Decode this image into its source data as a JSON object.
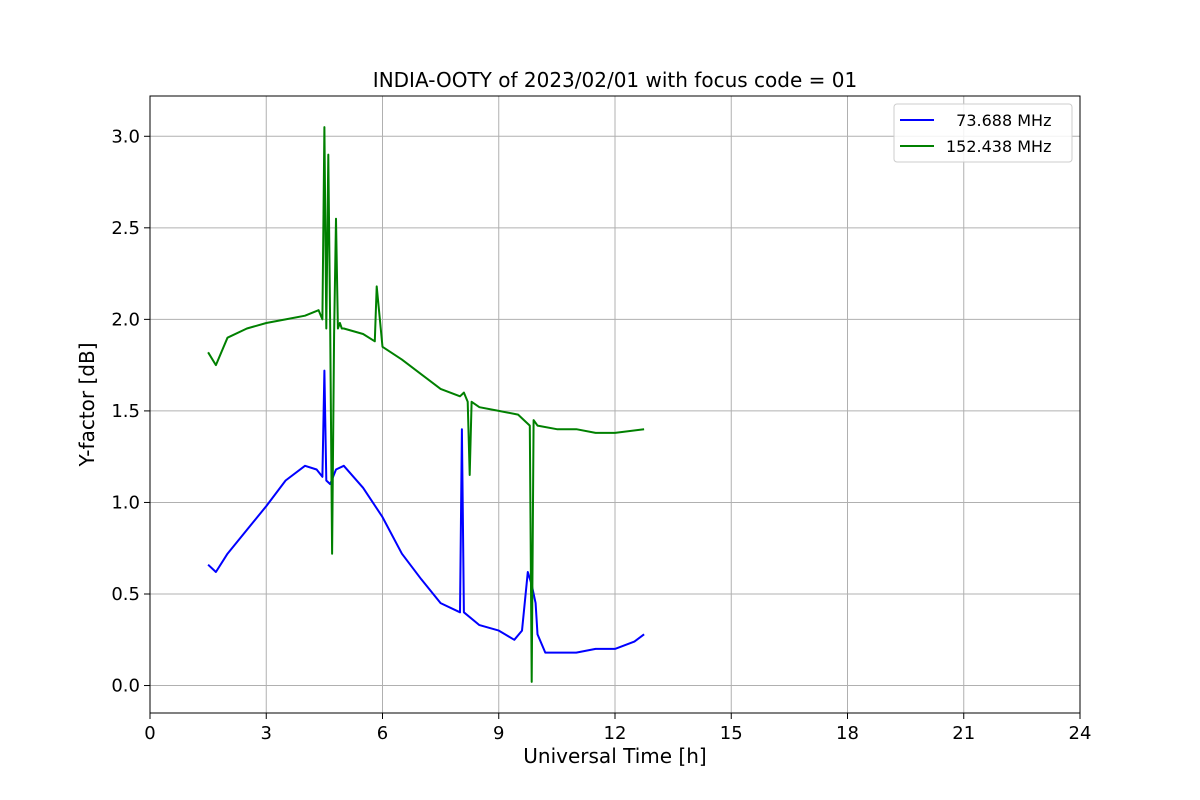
{
  "chart_data": {
    "type": "line",
    "title": "INDIA-OOTY of 2023/02/01 with focus code = 01",
    "xlabel": "Universal Time [h]",
    "ylabel": "Y-factor [dB]",
    "xlim": [
      0,
      24
    ],
    "ylim": [
      -0.15,
      3.22
    ],
    "x_ticks": [
      0,
      3,
      6,
      9,
      12,
      15,
      18,
      21,
      24
    ],
    "x_tick_labels": [
      "0",
      "3",
      "6",
      "9",
      "12",
      "15",
      "18",
      "21",
      "24"
    ],
    "y_ticks": [
      0.0,
      0.5,
      1.0,
      1.5,
      2.0,
      2.5,
      3.0
    ],
    "y_tick_labels": [
      "0.0",
      "0.5",
      "1.0",
      "1.5",
      "2.0",
      "2.5",
      "3.0"
    ],
    "grid": true,
    "legend_position": "top-right",
    "series": [
      {
        "name": "  73.688 MHz",
        "color": "#0000ff",
        "x": [
          1.5,
          1.7,
          2.0,
          2.5,
          3.0,
          3.5,
          4.0,
          4.3,
          4.45,
          4.5,
          4.55,
          4.65,
          4.8,
          5.0,
          5.5,
          6.0,
          6.5,
          7.0,
          7.5,
          8.0,
          8.05,
          8.1,
          8.5,
          9.0,
          9.4,
          9.6,
          9.75,
          9.85,
          9.95,
          10.0,
          10.2,
          10.5,
          11.0,
          11.5,
          12.0,
          12.5,
          12.75
        ],
        "y": [
          0.66,
          0.62,
          0.72,
          0.85,
          0.98,
          1.12,
          1.2,
          1.18,
          1.14,
          1.72,
          1.12,
          1.1,
          1.18,
          1.2,
          1.08,
          0.92,
          0.72,
          0.58,
          0.45,
          0.4,
          1.4,
          0.4,
          0.33,
          0.3,
          0.25,
          0.3,
          0.62,
          0.55,
          0.45,
          0.28,
          0.18,
          0.18,
          0.18,
          0.2,
          0.2,
          0.24,
          0.28
        ]
      },
      {
        "name": "152.438 MHz",
        "color": "#008000",
        "x": [
          1.5,
          1.7,
          2.0,
          2.5,
          3.0,
          3.5,
          4.0,
          4.35,
          4.45,
          4.5,
          4.55,
          4.6,
          4.65,
          4.7,
          4.75,
          4.8,
          4.85,
          4.9,
          4.95,
          5.0,
          5.5,
          5.8,
          5.85,
          6.0,
          6.5,
          7.0,
          7.5,
          8.0,
          8.1,
          8.2,
          8.25,
          8.3,
          8.5,
          9.0,
          9.5,
          9.8,
          9.85,
          9.9,
          10.0,
          10.5,
          11.0,
          11.5,
          12.0,
          12.75
        ],
        "y": [
          1.82,
          1.75,
          1.9,
          1.95,
          1.98,
          2.0,
          2.02,
          2.05,
          2.0,
          3.05,
          1.95,
          2.9,
          1.95,
          0.72,
          1.92,
          2.55,
          1.95,
          1.98,
          1.95,
          1.95,
          1.92,
          1.88,
          2.18,
          1.85,
          1.78,
          1.7,
          1.62,
          1.58,
          1.6,
          1.55,
          1.15,
          1.55,
          1.52,
          1.5,
          1.48,
          1.42,
          0.02,
          1.45,
          1.42,
          1.4,
          1.4,
          1.38,
          1.38,
          1.4
        ]
      }
    ]
  }
}
